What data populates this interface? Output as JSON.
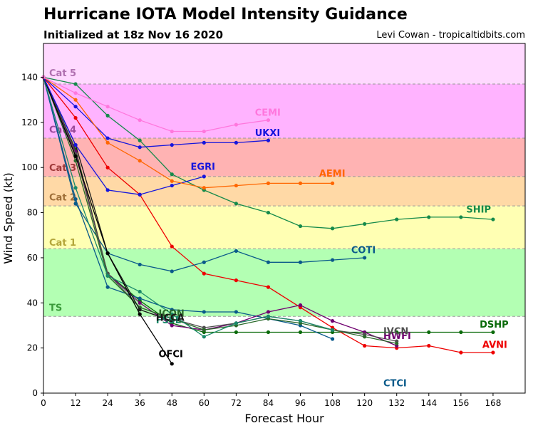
{
  "title": "Hurricane IOTA Model Intensity Guidance",
  "subtitle": "Initialized at 18z Nov 16 2020",
  "credit": "Levi Cowan - tropicaltidbits.com",
  "chart_data": {
    "type": "line",
    "xlabel": "Forecast Hour",
    "ylabel": "Wind Speed (kt)",
    "xlim": [
      0,
      180
    ],
    "ylim": [
      0,
      155
    ],
    "xticks": [
      0,
      12,
      24,
      36,
      48,
      60,
      72,
      84,
      96,
      108,
      120,
      132,
      144,
      156,
      168
    ],
    "yticks": [
      0,
      20,
      40,
      60,
      80,
      100,
      120,
      140
    ],
    "bands": [
      {
        "label": "TS",
        "from": 34,
        "to": 64,
        "color": "#b3ffb3",
        "label_color": "#3a9a3a",
        "label_y": 38
      },
      {
        "label": "Cat 1",
        "from": 64,
        "to": 83,
        "color": "#ffffb3",
        "label_color": "#b3a53a",
        "label_y": 67
      },
      {
        "label": "Cat 2",
        "from": 83,
        "to": 96,
        "color": "#ffd9a6",
        "label_color": "#a0703a",
        "label_y": 87
      },
      {
        "label": "Cat 3",
        "from": 96,
        "to": 113,
        "color": "#ffb3b3",
        "label_color": "#a03a3a",
        "label_y": 100
      },
      {
        "label": "Cat 4",
        "from": 113,
        "to": 137,
        "color": "#ffb3ff",
        "label_color": "#9a4a9a",
        "label_y": 117
      },
      {
        "label": "Cat 5",
        "from": 137,
        "to": 155,
        "color": "#ffd9ff",
        "label_color": "#b070b0",
        "label_y": 142
      }
    ],
    "series": [
      {
        "name": "SHIP",
        "color": "#158a4a",
        "x": [
          0,
          12,
          24,
          36,
          48,
          60,
          72,
          84,
          96,
          108,
          120,
          132,
          144,
          156,
          168
        ],
        "y": [
          140,
          137,
          123,
          112,
          97,
          90,
          84,
          80,
          74,
          73,
          75,
          77,
          78,
          78,
          77
        ],
        "label_x": 158,
        "label_y": 80
      },
      {
        "name": "DSHP",
        "color": "#0a6a0a",
        "x": [
          0,
          12,
          24,
          36,
          48,
          60,
          72,
          84,
          96,
          108,
          120,
          132,
          144,
          156,
          168
        ],
        "y": [
          140,
          108,
          53,
          41,
          31,
          27,
          27,
          27,
          27,
          27,
          27,
          27,
          27,
          27,
          27
        ],
        "label_x": 163,
        "label_y": 29
      },
      {
        "name": "AVNI",
        "color": "#ee0000",
        "x": [
          0,
          12,
          24,
          36,
          48,
          60,
          72,
          84,
          96,
          108,
          120,
          132,
          144,
          156,
          168
        ],
        "y": [
          140,
          122,
          100,
          88,
          65,
          53,
          50,
          47,
          38,
          29,
          21,
          20,
          21,
          18,
          18
        ],
        "label_x": 164,
        "label_y": 20
      },
      {
        "name": "COTI",
        "color": "#0a5a8a",
        "x": [
          0,
          12,
          24,
          36,
          48,
          60,
          72,
          84,
          96,
          108,
          120
        ],
        "y": [
          140,
          84,
          62,
          57,
          54,
          58,
          63,
          58,
          58,
          59,
          60
        ],
        "label_x": 115,
        "label_y": 62
      },
      {
        "name": "CTCI",
        "color": "#0a5a8a",
        "x": [
          0,
          12,
          24,
          36,
          48,
          60,
          72,
          84,
          96,
          108
        ],
        "y": [
          140,
          86,
          47,
          42,
          37,
          36,
          36,
          33,
          30,
          24
        ],
        "label_x": 127,
        "label_y": 3
      },
      {
        "name": "HWFI",
        "color": "#700070",
        "x": [
          0,
          12,
          24,
          36,
          48,
          60,
          72,
          84,
          96,
          108,
          120,
          132
        ],
        "y": [
          140,
          107,
          53,
          40,
          30,
          28,
          31,
          36,
          39,
          32,
          27,
          21
        ],
        "label_x": 127,
        "label_y": 24
      },
      {
        "name": "IVCN",
        "color": "#505050",
        "x": [
          0,
          12,
          24,
          36,
          48,
          60,
          72,
          84,
          96,
          108,
          120,
          132
        ],
        "y": [
          140,
          106,
          53,
          38,
          33,
          29,
          31,
          34,
          32,
          28,
          26,
          23
        ],
        "label_x": 127,
        "label_y": 26
      },
      {
        "name": "ICON",
        "color": "#2a6a2a",
        "x": [
          0,
          12,
          24,
          36,
          48,
          60,
          72,
          84,
          96,
          108,
          120,
          132
        ],
        "y": [
          140,
          103,
          52,
          38,
          33,
          28,
          30,
          33,
          31,
          28,
          25,
          22
        ],
        "label_x": 43,
        "label_y": 34
      },
      {
        "name": "FSSE",
        "color": "#1a8a6a",
        "x": [
          0,
          12,
          24,
          36,
          48,
          60,
          72,
          84,
          96,
          108
        ],
        "y": [
          140,
          91,
          52,
          45,
          35,
          25,
          31,
          34,
          32,
          28
        ],
        "label_x": 42,
        "label_y": 31
      },
      {
        "name": "HCCA",
        "color": "#1a1a1a",
        "x": [
          0,
          12,
          24,
          36,
          48
        ],
        "y": [
          140,
          110,
          62,
          37,
          32
        ],
        "label_x": 42,
        "label_y": 32
      },
      {
        "name": "OFCI",
        "color": "#000000",
        "x": [
          0,
          12,
          24,
          36,
          48
        ],
        "y": [
          140,
          105,
          62,
          35,
          13
        ],
        "label_x": 43,
        "label_y": 16
      },
      {
        "name": "EGRI",
        "color": "#1515dd",
        "x": [
          0,
          12,
          24,
          36,
          48,
          60
        ],
        "y": [
          140,
          110,
          90,
          88,
          92,
          96
        ],
        "label_x": 55,
        "label_y": 99
      },
      {
        "name": "UKXI",
        "color": "#1515dd",
        "x": [
          0,
          12,
          24,
          36,
          48,
          60,
          72,
          84
        ],
        "y": [
          140,
          127,
          113,
          109,
          110,
          111,
          111,
          112
        ],
        "label_x": 79,
        "label_y": 114
      },
      {
        "name": "AEMI",
        "color": "#ff6600",
        "x": [
          0,
          12,
          24,
          36,
          48,
          60,
          72,
          84,
          96,
          108
        ],
        "y": [
          140,
          130,
          111,
          103,
          94,
          91,
          92,
          93,
          93,
          93
        ],
        "label_x": 103,
        "label_y": 96
      },
      {
        "name": "CEMI",
        "color": "#ff77dd",
        "x": [
          0,
          12,
          24,
          36,
          48,
          60,
          72,
          84
        ],
        "y": [
          140,
          133,
          127,
          121,
          116,
          116,
          119,
          121
        ],
        "label_x": 79,
        "label_y": 123
      }
    ]
  }
}
